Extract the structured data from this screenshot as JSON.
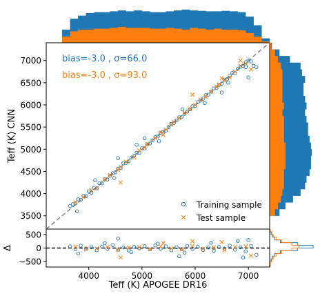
{
  "colors": {
    "training": "#1f77b4",
    "test": "#ff7f0e",
    "identity": "#808080",
    "zero_line": "#000000",
    "axis": "#000000"
  },
  "chart_data": [
    {
      "panel": "main_scatter",
      "type": "scatter",
      "xlabel": "",
      "ylabel": "Teff (K) CNN",
      "xlim": [
        3200,
        7400
      ],
      "ylim": [
        3200,
        7400
      ],
      "yticks": [
        3500,
        4000,
        4500,
        5000,
        5500,
        6000,
        6500,
        7000
      ],
      "yticklabels": [
        "3500",
        "4000",
        "4500",
        "5000",
        "5500",
        "6000",
        "6500",
        "7000"
      ],
      "grid": false,
      "legend_position": "lower-right",
      "identity_line": "dashed",
      "annotations": [
        {
          "text": "bias=-3.0 , σ=66.0",
          "series": "Training sample"
        },
        {
          "text": "bias=-3.0 , σ=93.0",
          "series": "Test sample"
        }
      ],
      "series": [
        {
          "name": "Training sample",
          "marker": "circle-open",
          "x": [
            3650,
            3700,
            3750,
            3800,
            3850,
            3900,
            3950,
            4000,
            4050,
            4100,
            4150,
            4200,
            4250,
            4300,
            4350,
            4400,
            4450,
            4500,
            4550,
            4600,
            4650,
            4700,
            4750,
            4800,
            4850,
            4900,
            4950,
            5000,
            5050,
            5100,
            5150,
            5200,
            5250,
            5300,
            5350,
            5400,
            5450,
            5500,
            5550,
            5600,
            5650,
            5700,
            5750,
            5800,
            5850,
            5900,
            5950,
            6000,
            6050,
            6100,
            6150,
            6200,
            6250,
            6300,
            6350,
            6400,
            6450,
            6500,
            6550,
            6600,
            6650,
            6700,
            6750,
            6800,
            6850,
            6900,
            6950,
            7000,
            7050,
            7100,
            7150,
            3780,
            4120,
            4480,
            4900,
            5320,
            5760,
            6180,
            6620,
            7000,
            4550,
            5050,
            6500,
            6950
          ],
          "y": [
            3720,
            3760,
            3780,
            3870,
            3860,
            3950,
            3940,
            4050,
            4020,
            4130,
            4120,
            4230,
            4230,
            4320,
            4320,
            4400,
            4460,
            4480,
            4560,
            4580,
            4680,
            4690,
            4730,
            4810,
            4850,
            4920,
            4920,
            5020,
            5020,
            5110,
            5130,
            5200,
            5270,
            5290,
            5370,
            5400,
            5420,
            5500,
            5570,
            5590,
            5650,
            5720,
            5730,
            5800,
            5850,
            5900,
            5970,
            5980,
            6060,
            6100,
            6140,
            6220,
            6230,
            6300,
            6370,
            6380,
            6450,
            6480,
            6570,
            6580,
            6650,
            6720,
            6720,
            6810,
            6860,
            6880,
            6960,
            7000,
            6980,
            6880,
            6850,
            3600,
            4300,
            4350,
            5100,
            5180,
            5900,
            6040,
            6500,
            6620,
            4800,
            5250,
            6280,
            6850
          ]
        },
        {
          "name": "Test sample",
          "marker": "x",
          "x": [
            3750,
            3900,
            4050,
            4150,
            4300,
            4400,
            4550,
            4600,
            4700,
            4850,
            4950,
            5050,
            5100,
            5250,
            5350,
            5450,
            5550,
            5600,
            5700,
            5800,
            5900,
            6000,
            6100,
            6200,
            6300,
            6400,
            6450,
            6550,
            6650,
            6750,
            6850,
            6950,
            7050,
            4600,
            5400,
            6850,
            5950,
            6500
          ],
          "y": [
            3800,
            3920,
            4080,
            4120,
            4320,
            4420,
            4530,
            4600,
            4720,
            4820,
            4970,
            5040,
            5120,
            5250,
            5380,
            5440,
            5560,
            5620,
            5700,
            5830,
            5900,
            6000,
            6120,
            6180,
            6300,
            6420,
            6460,
            6560,
            6620,
            6750,
            6880,
            6930,
            6800,
            4250,
            5330,
            7000,
            6230,
            6600
          ]
        }
      ]
    },
    {
      "panel": "residuals",
      "type": "scatter",
      "xlabel": "Teff (K) APOGEE DR16",
      "ylabel": "Δ",
      "xlim": [
        3200,
        7400
      ],
      "ylim": [
        -700,
        700
      ],
      "xticks": [
        4000,
        5000,
        6000,
        7000
      ],
      "xticklabels": [
        "4000",
        "5000",
        "6000",
        "7000"
      ],
      "yticks": [
        -500,
        0,
        500
      ],
      "yticklabels": [
        "−500",
        "0",
        "500"
      ],
      "zero_line": "dashed",
      "series": [
        {
          "name": "Training sample",
          "marker": "circle-open",
          "x": [
            3650,
            3750,
            3850,
            3950,
            4050,
            4150,
            4250,
            4350,
            4450,
            4550,
            4650,
            4750,
            4850,
            4950,
            5050,
            5150,
            5250,
            5350,
            5450,
            5550,
            5650,
            5750,
            5850,
            5950,
            6050,
            6150,
            6250,
            6350,
            6450,
            6550,
            6650,
            6750,
            6850,
            6950,
            7050,
            7150,
            3800,
            4300,
            4800,
            5300,
            5800,
            6300,
            6800,
            4550,
            5700,
            6900,
            7000
          ],
          "y": [
            60,
            -40,
            90,
            -20,
            30,
            -80,
            50,
            -30,
            110,
            -60,
            20,
            -90,
            40,
            -10,
            70,
            -50,
            100,
            -20,
            60,
            -80,
            30,
            -40,
            80,
            -30,
            50,
            -70,
            20,
            -100,
            40,
            -20,
            90,
            -60,
            30,
            -120,
            80,
            -250,
            -200,
            180,
            -150,
            160,
            -170,
            200,
            260,
            350,
            -300,
            -350,
            300
          ]
        },
        {
          "name": "Test sample",
          "marker": "x",
          "x": [
            3750,
            3950,
            4150,
            4350,
            4550,
            4750,
            4950,
            5150,
            5350,
            5550,
            5750,
            5950,
            6150,
            6350,
            6550,
            6750,
            6950,
            7050,
            4600,
            5400,
            6500,
            5950
          ],
          "y": [
            50,
            -30,
            -20,
            40,
            -60,
            20,
            30,
            -40,
            60,
            -20,
            -50,
            70,
            -30,
            20,
            -80,
            40,
            60,
            -280,
            -350,
            180,
            220,
            250
          ]
        }
      ]
    },
    {
      "panel": "top_histogram",
      "type": "bar",
      "orientation": "vertical",
      "bin_edges": [
        3200,
        3350,
        3500,
        3650,
        3800,
        3950,
        4100,
        4250,
        4400,
        4550,
        4700,
        4850,
        5000,
        5150,
        5300,
        5450,
        5600,
        5750,
        5900,
        6050,
        6200,
        6350,
        6500,
        6650,
        6800,
        6950,
        7100,
        7250,
        7400
      ],
      "series": [
        {
          "name": "Training sample",
          "values": [
            0,
            0,
            30,
            55,
            62,
            68,
            70,
            70,
            72,
            74,
            72,
            74,
            72,
            70,
            70,
            72,
            74,
            76,
            74,
            73,
            72,
            72,
            73,
            72,
            70,
            60,
            40,
            10
          ]
        },
        {
          "name": "Test sample",
          "values": [
            0,
            0,
            14,
            26,
            30,
            30,
            32,
            32,
            34,
            36,
            34,
            34,
            34,
            32,
            32,
            34,
            32,
            30,
            34,
            32,
            30,
            32,
            30,
            30,
            28,
            22,
            14,
            3
          ]
        }
      ]
    },
    {
      "panel": "right_histogram",
      "type": "bar",
      "orientation": "horizontal",
      "bin_edges": [
        3200,
        3350,
        3500,
        3650,
        3800,
        3950,
        4100,
        4250,
        4400,
        4550,
        4700,
        4850,
        5000,
        5150,
        5300,
        5450,
        5600,
        5750,
        5900,
        6050,
        6200,
        6350,
        6500,
        6650,
        6800,
        6950,
        7100,
        7250,
        7400
      ],
      "series": [
        {
          "name": "Training sample",
          "values": [
            0,
            0,
            12,
            20,
            30,
            40,
            46,
            48,
            52,
            54,
            54,
            55,
            54,
            52,
            50,
            50,
            48,
            46,
            48,
            46,
            44,
            44,
            46,
            42,
            40,
            26,
            12,
            2
          ]
        },
        {
          "name": "Test sample",
          "values": [
            0,
            0,
            6,
            10,
            14,
            16,
            18,
            18,
            18,
            20,
            20,
            20,
            20,
            18,
            18,
            18,
            18,
            16,
            18,
            16,
            16,
            16,
            16,
            16,
            14,
            10,
            6,
            1
          ]
        }
      ]
    },
    {
      "panel": "residual_histogram",
      "type": "line",
      "orientation": "horizontal",
      "bin_edges": [
        -700,
        -600,
        -500,
        -400,
        -300,
        -200,
        -100,
        0,
        100,
        200,
        300,
        400,
        500,
        600,
        700
      ],
      "series": [
        {
          "name": "Training sample",
          "values": [
            0,
            0,
            1,
            3,
            6,
            14,
            38,
            60,
            38,
            14,
            6,
            3,
            1,
            0
          ]
        },
        {
          "name": "Test sample",
          "values": [
            0,
            0,
            2,
            4,
            8,
            16,
            30,
            40,
            30,
            16,
            8,
            4,
            2,
            0
          ]
        }
      ]
    }
  ]
}
